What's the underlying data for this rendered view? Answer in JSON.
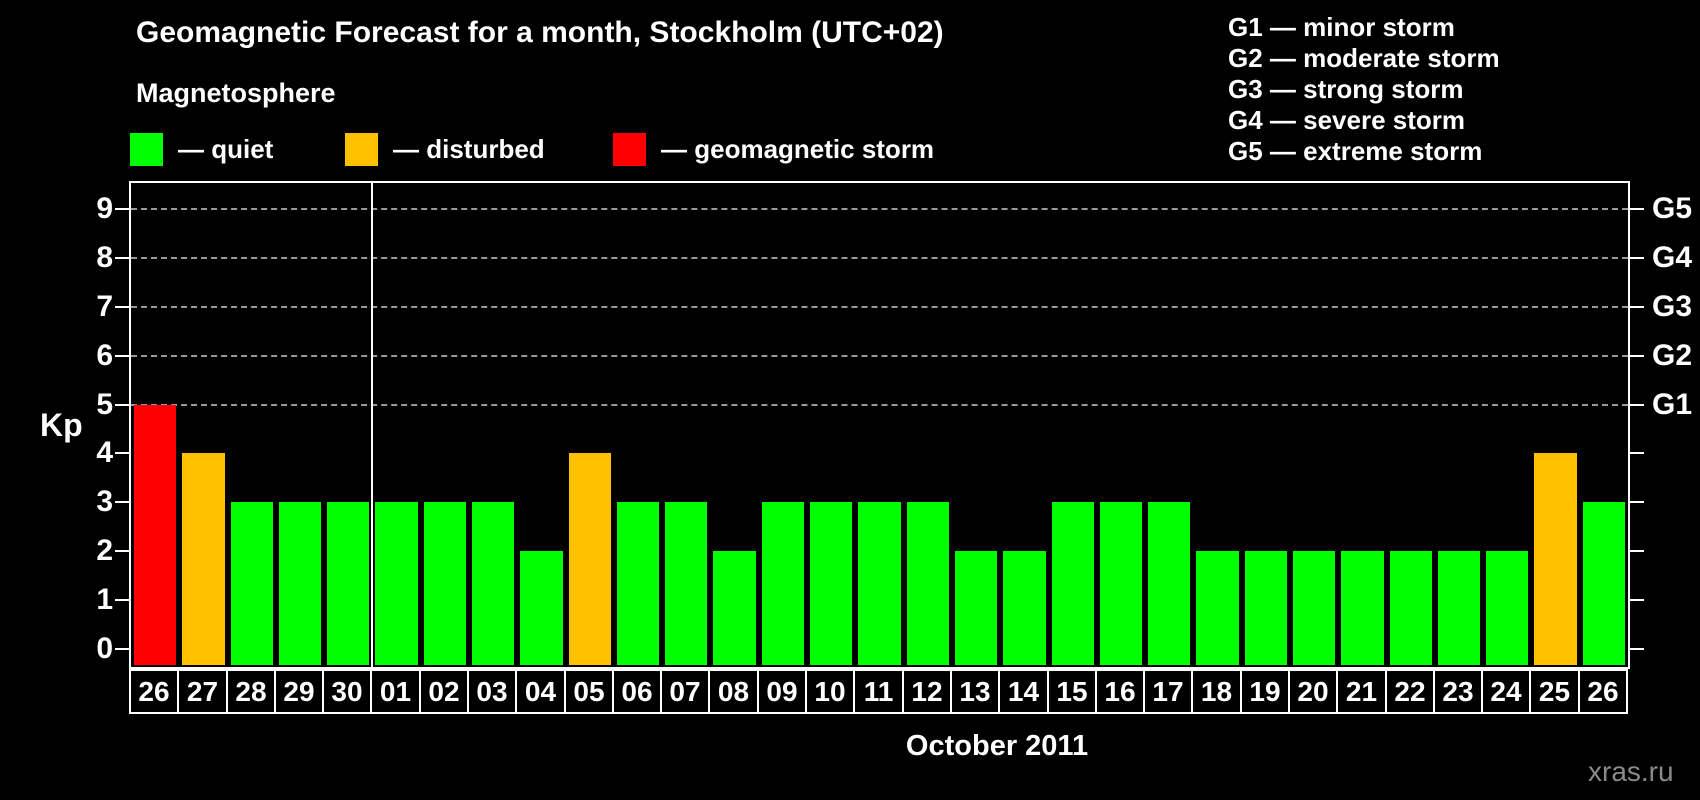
{
  "title": "Geomagnetic Forecast for a month, Stockholm (UTC+02)",
  "subtitle": "Magnetosphere",
  "legend": {
    "items": [
      {
        "name": "quiet",
        "label": "— quiet",
        "color": "#00ff00"
      },
      {
        "name": "disturbed",
        "label": "— disturbed",
        "color": "#ffc000"
      },
      {
        "name": "storm",
        "label": "— geomagnetic storm",
        "color": "#ff0000"
      }
    ]
  },
  "g_legend": {
    "lines": [
      "G1 — minor storm",
      "G2 — moderate storm",
      "G3 — strong storm",
      "G4 — severe storm",
      "G5 — extreme storm"
    ]
  },
  "watermark": "xras.ru",
  "chart_data": {
    "type": "bar",
    "title": "Geomagnetic Forecast for a month, Stockholm (UTC+02)",
    "xlabel": "October 2011",
    "ylabel": "Kp",
    "ylim": [
      0,
      9.5
    ],
    "yticks": [
      0,
      1,
      2,
      3,
      4,
      5,
      6,
      7,
      8,
      9
    ],
    "gridlines_kp": [
      5,
      6,
      7,
      8,
      9
    ],
    "grid": "horizontal dashed lines at Kp 5–9 only",
    "legend_position": "top-left",
    "right_axis": [
      {
        "kp": 5,
        "label": "G1"
      },
      {
        "kp": 6,
        "label": "G2"
      },
      {
        "kp": 7,
        "label": "G3"
      },
      {
        "kp": 8,
        "label": "G4"
      },
      {
        "kp": 9,
        "label": "G5"
      }
    ],
    "month_separator_after_index": 4,
    "categories": [
      "26",
      "27",
      "28",
      "29",
      "30",
      "01",
      "02",
      "03",
      "04",
      "05",
      "06",
      "07",
      "08",
      "09",
      "10",
      "11",
      "12",
      "13",
      "14",
      "15",
      "16",
      "17",
      "18",
      "19",
      "20",
      "21",
      "22",
      "23",
      "24",
      "25",
      "26"
    ],
    "values": [
      5,
      4,
      3,
      3,
      3,
      3,
      3,
      3,
      2,
      4,
      3,
      3,
      2,
      3,
      3,
      3,
      3,
      2,
      2,
      3,
      3,
      3,
      2,
      2,
      2,
      2,
      2,
      2,
      2,
      4,
      3
    ],
    "statuses": [
      "storm",
      "disturbed",
      "quiet",
      "quiet",
      "quiet",
      "quiet",
      "quiet",
      "quiet",
      "quiet",
      "disturbed",
      "quiet",
      "quiet",
      "quiet",
      "quiet",
      "quiet",
      "quiet",
      "quiet",
      "quiet",
      "quiet",
      "quiet",
      "quiet",
      "quiet",
      "quiet",
      "quiet",
      "quiet",
      "quiet",
      "quiet",
      "quiet",
      "quiet",
      "disturbed",
      "quiet"
    ],
    "status_colors": {
      "quiet": "#00ff00",
      "disturbed": "#ffc000",
      "storm": "#ff0000"
    }
  }
}
